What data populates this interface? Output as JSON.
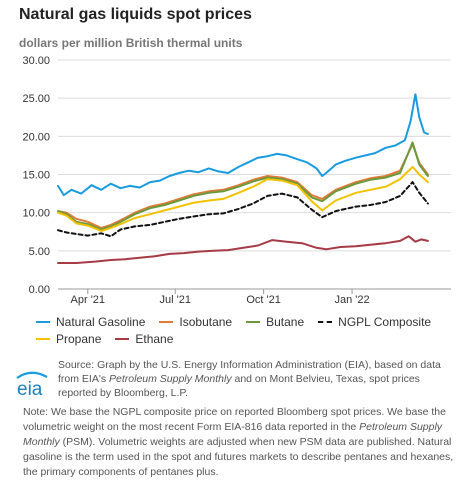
{
  "header": {
    "title": "Natural gas liquids spot prices",
    "subtitle": "dollars per million British thermal units"
  },
  "chart_data": {
    "type": "line",
    "ylim": [
      0,
      30
    ],
    "yticks": [
      0,
      5,
      10,
      15,
      20,
      25,
      30
    ],
    "ytick_labels": [
      "0.00",
      "5.00",
      "10.00",
      "15.00",
      "20.00",
      "25.00",
      "30.00"
    ],
    "x_range": [
      "2021-03-01",
      "2022-04-14"
    ],
    "xticks": [
      {
        "date": "2021-04-01",
        "label": "Apr '21"
      },
      {
        "date": "2021-07-01",
        "label": "Jul '21"
      },
      {
        "date": "2021-10-01",
        "label": "Oct '21"
      },
      {
        "date": "2022-01-01",
        "label": "Jan '22"
      }
    ],
    "grid": "horizontal",
    "legend_position": "bottom",
    "series": [
      {
        "name": "Natural Gasoline",
        "color": "#1a9be0",
        "dash": false,
        "points": [
          [
            "2021-03-01",
            13.5
          ],
          [
            "2021-03-07",
            12.3
          ],
          [
            "2021-03-15",
            13.0
          ],
          [
            "2021-03-25",
            12.5
          ],
          [
            "2021-04-05",
            13.6
          ],
          [
            "2021-04-15",
            13.0
          ],
          [
            "2021-04-25",
            13.8
          ],
          [
            "2021-05-05",
            13.2
          ],
          [
            "2021-05-15",
            13.5
          ],
          [
            "2021-05-25",
            13.3
          ],
          [
            "2021-06-05",
            14.0
          ],
          [
            "2021-06-15",
            14.2
          ],
          [
            "2021-06-25",
            14.8
          ],
          [
            "2021-07-05",
            15.2
          ],
          [
            "2021-07-15",
            15.5
          ],
          [
            "2021-07-25",
            15.3
          ],
          [
            "2021-08-05",
            15.8
          ],
          [
            "2021-08-15",
            15.4
          ],
          [
            "2021-08-25",
            15.2
          ],
          [
            "2021-09-05",
            16.0
          ],
          [
            "2021-09-15",
            16.6
          ],
          [
            "2021-09-25",
            17.2
          ],
          [
            "2021-10-05",
            17.4
          ],
          [
            "2021-10-15",
            17.7
          ],
          [
            "2021-10-25",
            17.5
          ],
          [
            "2021-11-05",
            17.0
          ],
          [
            "2021-11-15",
            16.6
          ],
          [
            "2021-11-25",
            15.8
          ],
          [
            "2021-12-01",
            14.8
          ],
          [
            "2021-12-05",
            15.2
          ],
          [
            "2021-12-15",
            16.3
          ],
          [
            "2021-12-25",
            16.8
          ],
          [
            "2022-01-05",
            17.2
          ],
          [
            "2022-01-15",
            17.5
          ],
          [
            "2022-01-25",
            17.8
          ],
          [
            "2022-02-05",
            18.5
          ],
          [
            "2022-02-15",
            18.8
          ],
          [
            "2022-02-25",
            19.5
          ],
          [
            "2022-03-03",
            22.0
          ],
          [
            "2022-03-08",
            25.5
          ],
          [
            "2022-03-12",
            22.5
          ],
          [
            "2022-03-17",
            20.5
          ],
          [
            "2022-03-21",
            20.3
          ]
        ]
      },
      {
        "name": "Isobutane",
        "color": "#e07b39",
        "dash": false,
        "points": [
          [
            "2021-03-01",
            10.2
          ],
          [
            "2021-03-10",
            10.0
          ],
          [
            "2021-03-20",
            9.2
          ],
          [
            "2021-04-01",
            8.8
          ],
          [
            "2021-04-15",
            8.0
          ],
          [
            "2021-04-25",
            8.4
          ],
          [
            "2021-05-05",
            9.0
          ],
          [
            "2021-05-20",
            10.0
          ],
          [
            "2021-06-05",
            10.8
          ],
          [
            "2021-06-20",
            11.2
          ],
          [
            "2021-07-05",
            11.8
          ],
          [
            "2021-07-20",
            12.4
          ],
          [
            "2021-08-05",
            12.8
          ],
          [
            "2021-08-20",
            13.0
          ],
          [
            "2021-09-05",
            13.6
          ],
          [
            "2021-09-20",
            14.3
          ],
          [
            "2021-10-05",
            14.8
          ],
          [
            "2021-10-20",
            14.6
          ],
          [
            "2021-11-05",
            14.0
          ],
          [
            "2021-11-20",
            12.3
          ],
          [
            "2021-12-01",
            11.8
          ],
          [
            "2021-12-15",
            13.0
          ],
          [
            "2022-01-05",
            14.0
          ],
          [
            "2022-01-20",
            14.5
          ],
          [
            "2022-02-05",
            14.8
          ],
          [
            "2022-02-20",
            15.5
          ],
          [
            "2022-03-05",
            19.0
          ],
          [
            "2022-03-12",
            16.5
          ],
          [
            "2022-03-21",
            15.0
          ]
        ]
      },
      {
        "name": "Butane",
        "color": "#6a9a3d",
        "dash": false,
        "points": [
          [
            "2021-03-01",
            10.2
          ],
          [
            "2021-03-10",
            9.8
          ],
          [
            "2021-03-20",
            8.8
          ],
          [
            "2021-04-01",
            8.5
          ],
          [
            "2021-04-15",
            7.8
          ],
          [
            "2021-04-25",
            8.2
          ],
          [
            "2021-05-05",
            8.8
          ],
          [
            "2021-05-20",
            9.8
          ],
          [
            "2021-06-05",
            10.6
          ],
          [
            "2021-06-20",
            11.0
          ],
          [
            "2021-07-05",
            11.6
          ],
          [
            "2021-07-20",
            12.2
          ],
          [
            "2021-08-05",
            12.6
          ],
          [
            "2021-08-20",
            12.8
          ],
          [
            "2021-09-05",
            13.4
          ],
          [
            "2021-09-20",
            14.1
          ],
          [
            "2021-10-05",
            14.6
          ],
          [
            "2021-10-20",
            14.4
          ],
          [
            "2021-11-05",
            13.8
          ],
          [
            "2021-11-20",
            12.0
          ],
          [
            "2021-12-01",
            11.5
          ],
          [
            "2021-12-15",
            12.8
          ],
          [
            "2022-01-05",
            13.8
          ],
          [
            "2022-01-20",
            14.3
          ],
          [
            "2022-02-05",
            14.6
          ],
          [
            "2022-02-20",
            15.2
          ],
          [
            "2022-03-05",
            19.2
          ],
          [
            "2022-03-12",
            16.3
          ],
          [
            "2022-03-21",
            14.8
          ]
        ]
      },
      {
        "name": "NGPL Composite",
        "color": "#111111",
        "dash": true,
        "points": [
          [
            "2021-03-01",
            7.7
          ],
          [
            "2021-03-10",
            7.4
          ],
          [
            "2021-03-20",
            7.2
          ],
          [
            "2021-04-01",
            7.0
          ],
          [
            "2021-04-15",
            7.3
          ],
          [
            "2021-04-25",
            6.9
          ],
          [
            "2021-05-05",
            7.8
          ],
          [
            "2021-05-20",
            8.2
          ],
          [
            "2021-06-05",
            8.4
          ],
          [
            "2021-06-20",
            8.8
          ],
          [
            "2021-07-05",
            9.2
          ],
          [
            "2021-07-20",
            9.5
          ],
          [
            "2021-08-05",
            9.8
          ],
          [
            "2021-08-20",
            9.9
          ],
          [
            "2021-09-05",
            10.5
          ],
          [
            "2021-09-20",
            11.2
          ],
          [
            "2021-10-05",
            12.2
          ],
          [
            "2021-10-20",
            12.5
          ],
          [
            "2021-11-05",
            12.0
          ],
          [
            "2021-11-20",
            10.4
          ],
          [
            "2021-12-01",
            9.4
          ],
          [
            "2021-12-15",
            10.2
          ],
          [
            "2022-01-05",
            10.8
          ],
          [
            "2022-01-20",
            11.0
          ],
          [
            "2022-02-05",
            11.4
          ],
          [
            "2022-02-20",
            12.2
          ],
          [
            "2022-03-05",
            14.0
          ],
          [
            "2022-03-12",
            12.6
          ],
          [
            "2022-03-21",
            11.2
          ]
        ]
      },
      {
        "name": "Propane",
        "color": "#f2c200",
        "dash": false,
        "points": [
          [
            "2021-03-01",
            10.0
          ],
          [
            "2021-03-10",
            9.6
          ],
          [
            "2021-03-20",
            8.6
          ],
          [
            "2021-04-01",
            8.3
          ],
          [
            "2021-04-15",
            7.6
          ],
          [
            "2021-04-25",
            8.0
          ],
          [
            "2021-05-05",
            8.5
          ],
          [
            "2021-05-20",
            9.3
          ],
          [
            "2021-06-05",
            9.8
          ],
          [
            "2021-06-20",
            10.3
          ],
          [
            "2021-07-05",
            10.8
          ],
          [
            "2021-07-20",
            11.3
          ],
          [
            "2021-08-05",
            11.6
          ],
          [
            "2021-08-20",
            11.8
          ],
          [
            "2021-09-05",
            12.6
          ],
          [
            "2021-09-20",
            13.4
          ],
          [
            "2021-10-05",
            14.4
          ],
          [
            "2021-10-20",
            14.2
          ],
          [
            "2021-11-05",
            13.6
          ],
          [
            "2021-11-20",
            11.5
          ],
          [
            "2021-12-01",
            10.3
          ],
          [
            "2021-12-15",
            11.6
          ],
          [
            "2022-01-05",
            12.6
          ],
          [
            "2022-01-20",
            13.0
          ],
          [
            "2022-02-05",
            13.4
          ],
          [
            "2022-02-20",
            14.4
          ],
          [
            "2022-03-05",
            16.0
          ],
          [
            "2022-03-12",
            15.0
          ],
          [
            "2022-03-21",
            14.0
          ]
        ]
      },
      {
        "name": "Ethane",
        "color": "#a63a45",
        "dash": false,
        "points": [
          [
            "2021-03-01",
            3.4
          ],
          [
            "2021-03-20",
            3.4
          ],
          [
            "2021-04-10",
            3.6
          ],
          [
            "2021-04-25",
            3.8
          ],
          [
            "2021-05-10",
            3.9
          ],
          [
            "2021-05-25",
            4.1
          ],
          [
            "2021-06-10",
            4.3
          ],
          [
            "2021-06-25",
            4.6
          ],
          [
            "2021-07-10",
            4.7
          ],
          [
            "2021-07-25",
            4.9
          ],
          [
            "2021-08-10",
            5.0
          ],
          [
            "2021-08-25",
            5.1
          ],
          [
            "2021-09-10",
            5.4
          ],
          [
            "2021-09-25",
            5.7
          ],
          [
            "2021-10-10",
            6.4
          ],
          [
            "2021-10-25",
            6.2
          ],
          [
            "2021-11-10",
            6.0
          ],
          [
            "2021-11-25",
            5.4
          ],
          [
            "2021-12-05",
            5.2
          ],
          [
            "2021-12-20",
            5.5
          ],
          [
            "2022-01-05",
            5.6
          ],
          [
            "2022-01-20",
            5.8
          ],
          [
            "2022-02-05",
            6.0
          ],
          [
            "2022-02-20",
            6.3
          ],
          [
            "2022-03-01",
            6.9
          ],
          [
            "2022-03-08",
            6.2
          ],
          [
            "2022-03-14",
            6.5
          ],
          [
            "2022-03-21",
            6.3
          ]
        ]
      }
    ]
  },
  "legend": {
    "row1": [
      "Natural Gasoline",
      "Isobutane",
      "Butane",
      "NGPL Composite"
    ],
    "row2": [
      "Propane",
      "Ethane"
    ]
  },
  "source": {
    "pieces": [
      "Source: Graph by the U.S. Energy Information Administration (EIA), based on data from EIA's ",
      "Petroleum Supply Monthly",
      " and on Mont Belvieu, Texas, spot prices reported by Bloomberg, L.P."
    ],
    "logo_text": "eia"
  },
  "note": {
    "pieces": [
      "Note: We base the NGPL composite price on reported Bloomberg spot prices. We base the volumetric weight on the most recent Form EIA-816 data reported in the ",
      "Petroleum Supply Monthly",
      " (PSM). Volumetric weights are adjusted when new PSM data are published. Natural gasoline is the term used in the spot and futures markets to describe pentanes and hexanes, the primary components of pentanes plus."
    ]
  }
}
